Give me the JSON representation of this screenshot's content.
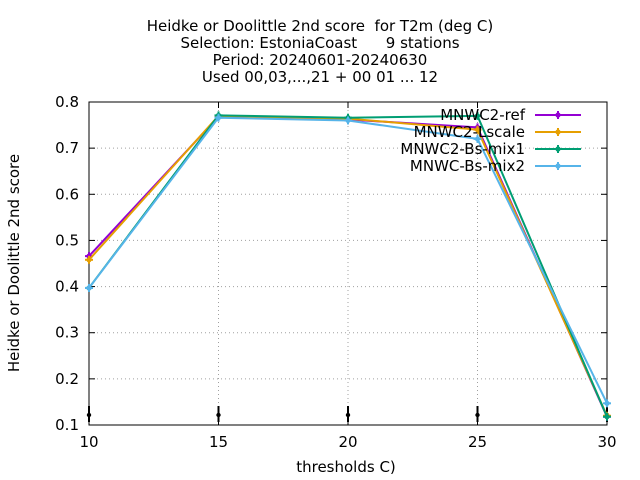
{
  "chart_data": {
    "type": "line",
    "title_lines": [
      "Heidke or Doolittle 2nd score  for T2m (deg C)",
      "Selection: EstoniaCoast      9 stations",
      "Period: 20240601-20240630",
      "Used 00,03,...,21 + 00 01 ... 12"
    ],
    "xlabel": "thresholds C)",
    "ylabel": "Heidke or Doolittle 2nd score",
    "x": [
      10,
      15,
      20,
      25,
      30
    ],
    "xticks": [
      "10",
      "15",
      "20",
      "25",
      "30"
    ],
    "yticks": [
      "0.1",
      "0.2",
      "0.3",
      "0.4",
      "0.5",
      "0.6",
      "0.7",
      "0.8"
    ],
    "xlim": [
      10,
      30
    ],
    "ylim": [
      0.1,
      0.8
    ],
    "grid": true,
    "legend_position": "top-right",
    "series": [
      {
        "name": "MNWC2-ref",
        "color": "#9400d3",
        "values": [
          0.466,
          0.768,
          0.762,
          0.745,
          0.118
        ]
      },
      {
        "name": "MNWC2-Lscale",
        "color": "#e69f00",
        "values": [
          0.458,
          0.77,
          0.764,
          0.74,
          0.12
        ]
      },
      {
        "name": "MNWC2-Bs-mix1",
        "color": "#009e73",
        "values": [
          0.397,
          0.771,
          0.766,
          0.77,
          0.118
        ]
      },
      {
        "name": "MNWC-Bs-mix2",
        "color": "#56b4e9",
        "values": [
          0.397,
          0.766,
          0.76,
          0.72,
          0.147
        ]
      }
    ]
  }
}
